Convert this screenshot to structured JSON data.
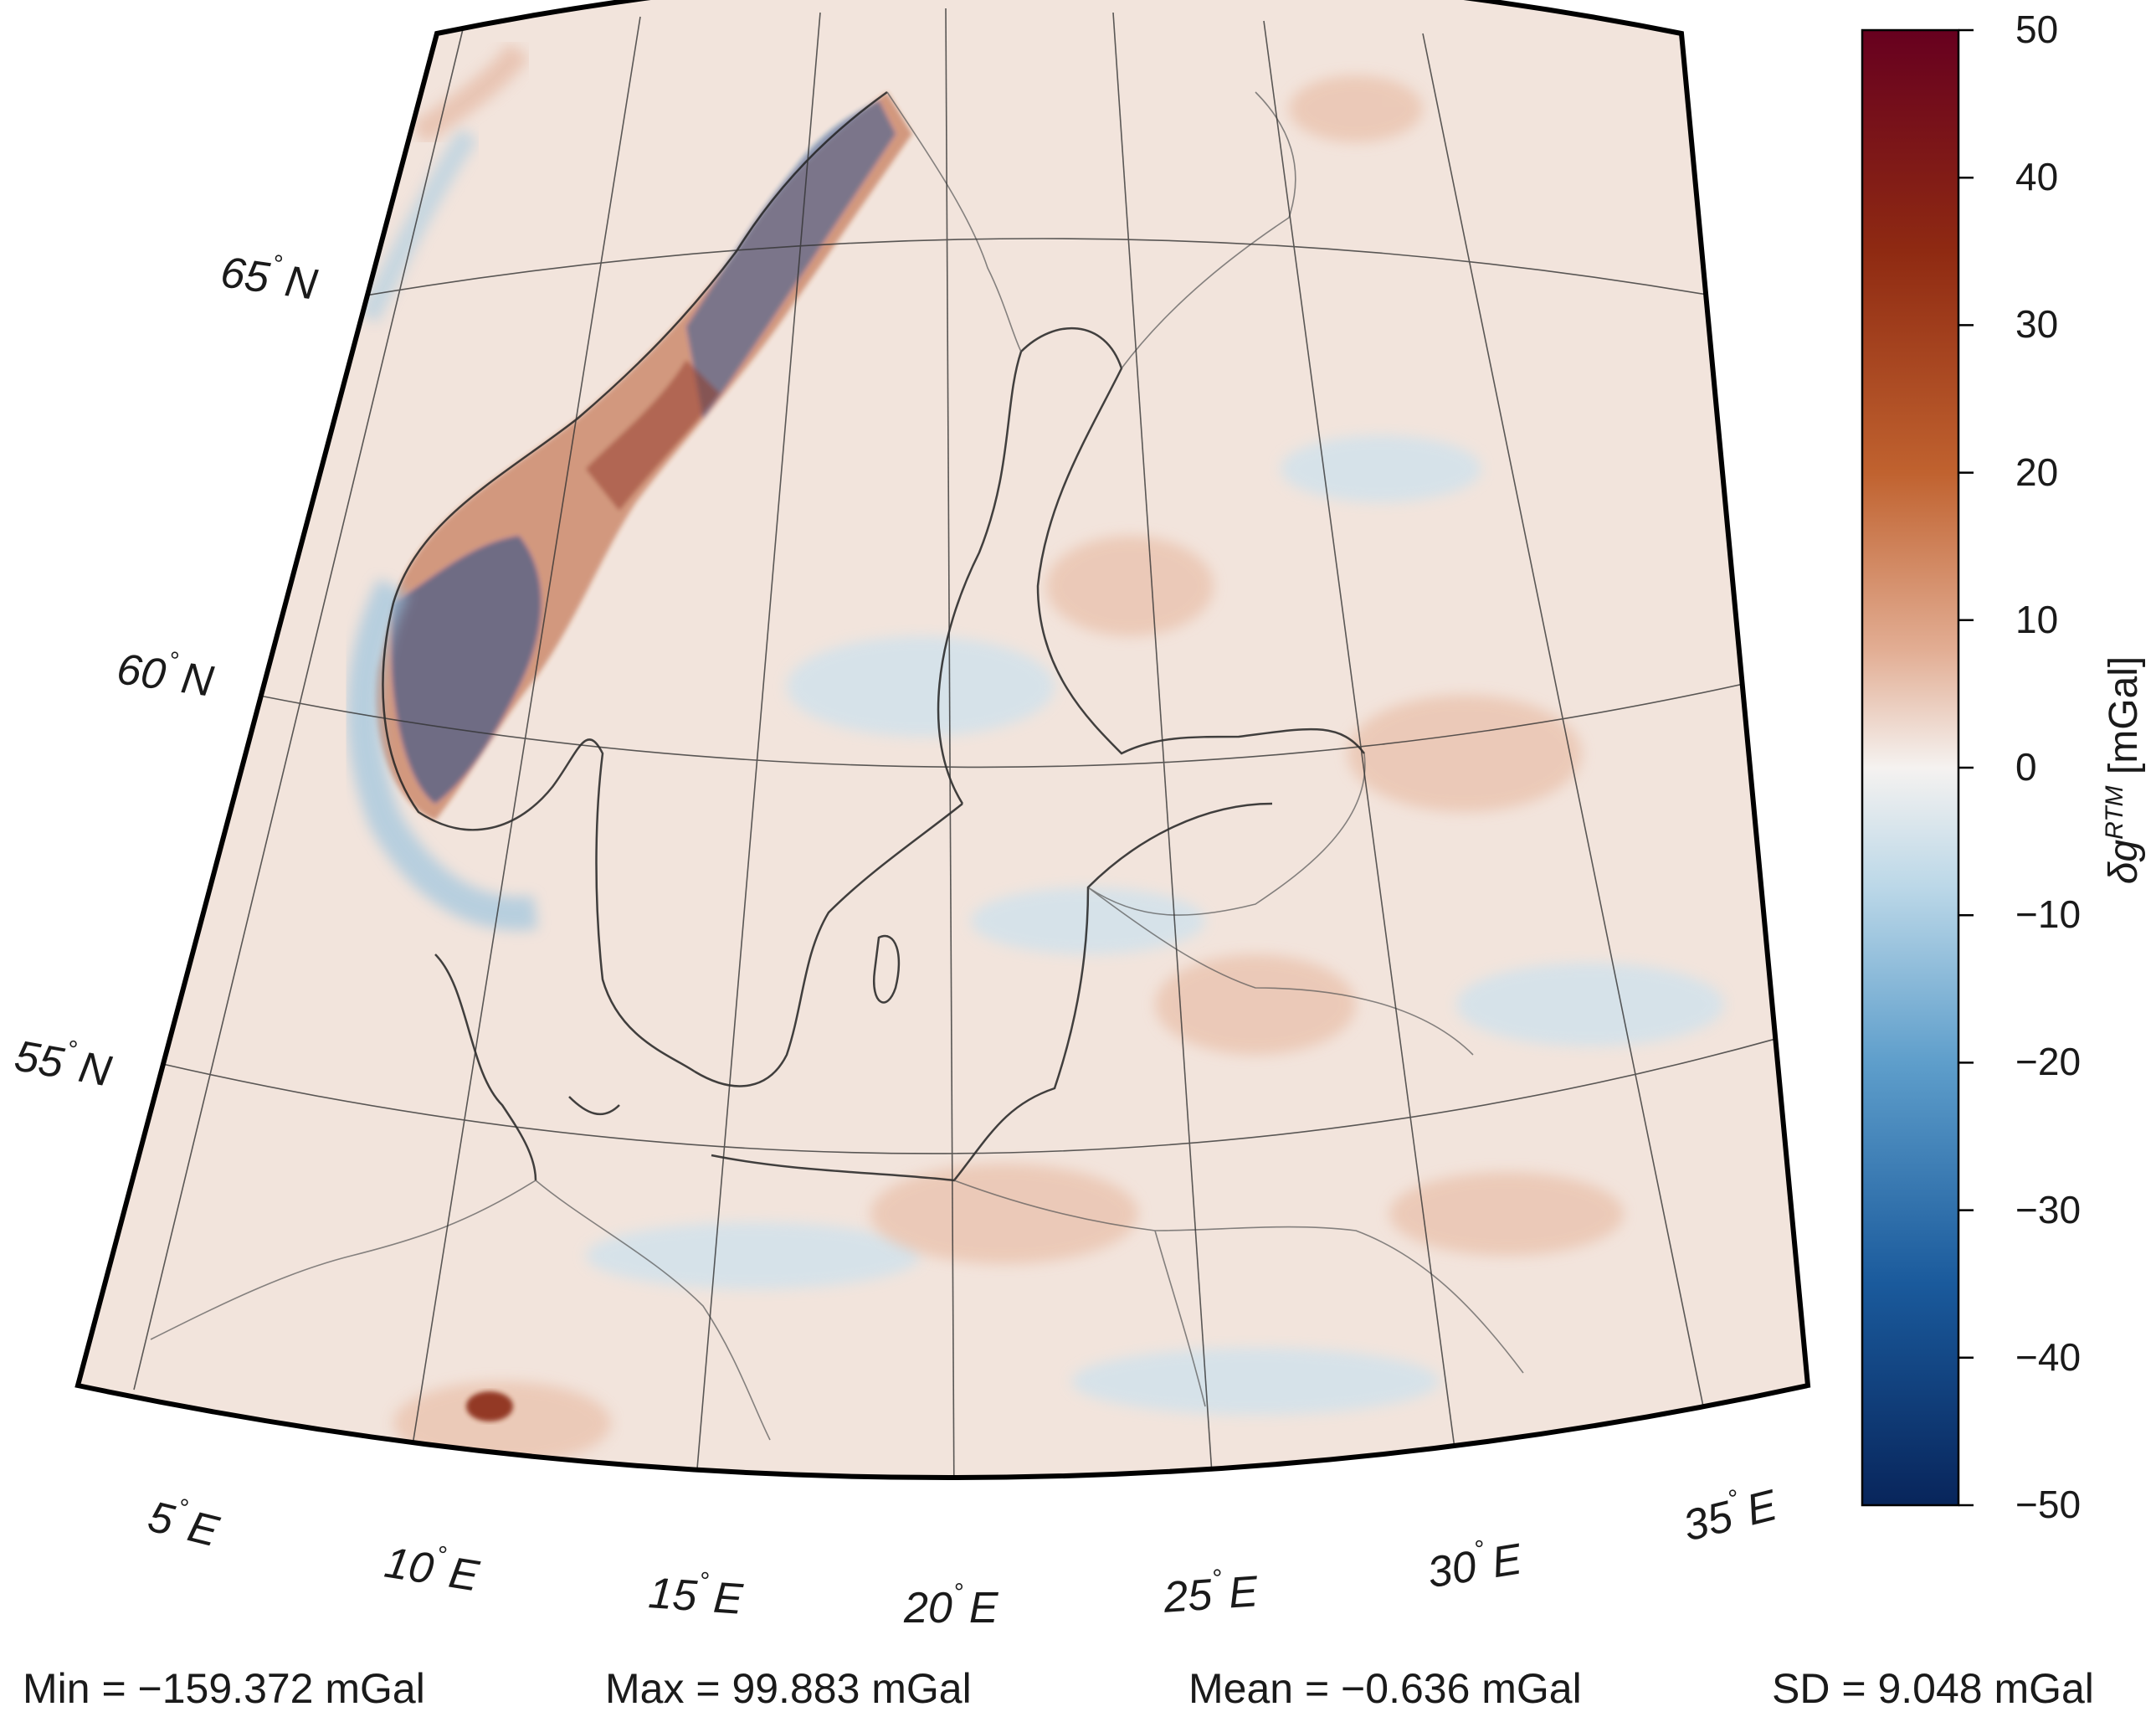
{
  "map": {
    "lat_labels": [
      {
        "value": "65",
        "unit": "N"
      },
      {
        "value": "60",
        "unit": "N"
      },
      {
        "value": "55",
        "unit": "N"
      }
    ],
    "lon_labels": [
      {
        "value": "5",
        "unit": "E"
      },
      {
        "value": "10",
        "unit": "E"
      },
      {
        "value": "15",
        "unit": "E"
      },
      {
        "value": "20",
        "unit": "E"
      },
      {
        "value": "25",
        "unit": "E"
      },
      {
        "value": "30",
        "unit": "E"
      },
      {
        "value": "35",
        "unit": "E"
      }
    ],
    "degree_symbol": "°"
  },
  "colorbar": {
    "label_prefix": "δg",
    "label_superscript": "RTM",
    "label_unit": "[mGal]",
    "range": [
      -50,
      50
    ],
    "ticks": [
      "50",
      "40",
      "30",
      "20",
      "10",
      "0",
      "−10",
      "−20",
      "−30",
      "−40",
      "−50"
    ],
    "colors": {
      "max": "#67001f",
      "high": "#b2522a",
      "mid_high": "#e8b9a0",
      "zero": "#f5f2f0",
      "mid_low": "#b6d5e6",
      "low": "#3a7fb6",
      "min": "#082f6b"
    }
  },
  "stats": {
    "min": "Min = −159.372 mGal",
    "max": "Max = 99.883 mGal",
    "mean": "Mean = −0.636 mGal",
    "sd": "SD = 9.048 mGal"
  }
}
